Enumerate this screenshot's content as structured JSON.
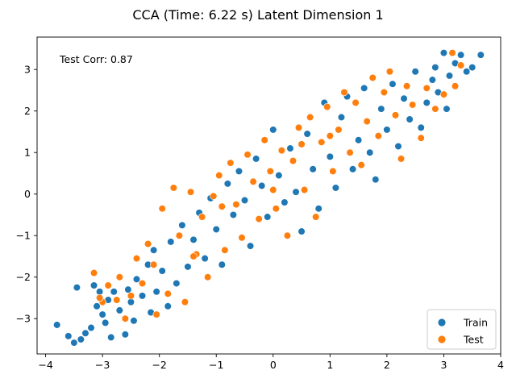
{
  "chart_data": {
    "type": "scatter",
    "title": "CCA (Time: 6.22 s) Latent Dimension 1",
    "xlabel": "",
    "ylabel": "",
    "xlim": [
      -4.15,
      4.0
    ],
    "ylim": [
      -3.85,
      3.78
    ],
    "xticks": [
      -4,
      -3,
      -2,
      -1,
      0,
      1,
      2,
      3,
      4
    ],
    "yticks": [
      -3,
      -2,
      -1,
      0,
      1,
      2,
      3
    ],
    "xtick_labels": [
      "−4",
      "−3",
      "−2",
      "−1",
      "0",
      "1",
      "2",
      "3",
      "4"
    ],
    "ytick_labels": [
      "−3",
      "−2",
      "−1",
      "0",
      "1",
      "2",
      "3"
    ],
    "grid": false,
    "legend_position": "lower-right",
    "annotation": "Test Corr: 0.87",
    "series": [
      {
        "name": "Train",
        "color": "#1f77b4",
        "points": [
          [
            -3.8,
            -3.15
          ],
          [
            -3.6,
            -3.42
          ],
          [
            -3.5,
            -3.58
          ],
          [
            -3.38,
            -3.5
          ],
          [
            -3.45,
            -2.25
          ],
          [
            -3.3,
            -3.35
          ],
          [
            -3.2,
            -3.22
          ],
          [
            -3.15,
            -2.2
          ],
          [
            -3.1,
            -2.7
          ],
          [
            -3.05,
            -2.35
          ],
          [
            -3.0,
            -2.9
          ],
          [
            -2.95,
            -3.1
          ],
          [
            -2.9,
            -2.55
          ],
          [
            -2.85,
            -3.45
          ],
          [
            -2.8,
            -2.35
          ],
          [
            -2.7,
            -2.8
          ],
          [
            -2.6,
            -3.38
          ],
          [
            -2.55,
            -2.3
          ],
          [
            -2.5,
            -2.6
          ],
          [
            -2.45,
            -3.05
          ],
          [
            -2.4,
            -2.05
          ],
          [
            -2.3,
            -2.45
          ],
          [
            -2.2,
            -1.7
          ],
          [
            -2.15,
            -2.85
          ],
          [
            -2.1,
            -1.35
          ],
          [
            -2.05,
            -2.35
          ],
          [
            -1.95,
            -1.85
          ],
          [
            -1.85,
            -2.7
          ],
          [
            -1.8,
            -1.15
          ],
          [
            -1.7,
            -2.15
          ],
          [
            -1.6,
            -0.75
          ],
          [
            -1.5,
            -1.75
          ],
          [
            -1.4,
            -1.1
          ],
          [
            -1.3,
            -0.45
          ],
          [
            -1.2,
            -1.55
          ],
          [
            -1.1,
            -0.1
          ],
          [
            -1.0,
            -0.85
          ],
          [
            -0.9,
            -1.7
          ],
          [
            -0.8,
            0.25
          ],
          [
            -0.7,
            -0.5
          ],
          [
            -0.6,
            0.55
          ],
          [
            -0.5,
            -0.15
          ],
          [
            -0.4,
            -1.25
          ],
          [
            -0.3,
            0.85
          ],
          [
            -0.2,
            0.2
          ],
          [
            -0.1,
            -0.55
          ],
          [
            0.0,
            1.55
          ],
          [
            0.1,
            0.45
          ],
          [
            0.2,
            -0.2
          ],
          [
            0.3,
            1.1
          ],
          [
            0.4,
            0.05
          ],
          [
            0.5,
            -0.9
          ],
          [
            0.6,
            1.45
          ],
          [
            0.7,
            0.6
          ],
          [
            0.8,
            -0.35
          ],
          [
            0.9,
            2.2
          ],
          [
            1.0,
            0.9
          ],
          [
            1.1,
            0.15
          ],
          [
            1.2,
            1.85
          ],
          [
            1.3,
            2.35
          ],
          [
            1.4,
            0.6
          ],
          [
            1.5,
            1.3
          ],
          [
            1.6,
            2.55
          ],
          [
            1.7,
            1.0
          ],
          [
            1.8,
            0.35
          ],
          [
            1.9,
            2.05
          ],
          [
            2.0,
            1.55
          ],
          [
            2.1,
            2.65
          ],
          [
            2.2,
            1.15
          ],
          [
            2.3,
            2.3
          ],
          [
            2.4,
            1.8
          ],
          [
            2.5,
            2.95
          ],
          [
            2.6,
            1.6
          ],
          [
            2.7,
            2.2
          ],
          [
            2.8,
            2.75
          ],
          [
            2.85,
            3.05
          ],
          [
            2.9,
            2.45
          ],
          [
            3.0,
            3.4
          ],
          [
            3.05,
            2.05
          ],
          [
            3.1,
            2.85
          ],
          [
            3.2,
            3.15
          ],
          [
            3.3,
            3.35
          ],
          [
            3.4,
            2.95
          ],
          [
            3.5,
            3.05
          ],
          [
            3.65,
            3.35
          ]
        ]
      },
      {
        "name": "Test",
        "color": "#ff7f0e",
        "points": [
          [
            -3.15,
            -1.9
          ],
          [
            -3.0,
            -2.6
          ],
          [
            -2.9,
            -2.2
          ],
          [
            -2.7,
            -2.0
          ],
          [
            -2.6,
            -3.0
          ],
          [
            -2.5,
            -2.45
          ],
          [
            -2.4,
            -1.55
          ],
          [
            -2.3,
            -2.15
          ],
          [
            -2.2,
            -1.2
          ],
          [
            -2.1,
            -1.7
          ],
          [
            -2.05,
            -2.9
          ],
          [
            -1.95,
            -0.35
          ],
          [
            -1.85,
            -2.4
          ],
          [
            -1.75,
            0.15
          ],
          [
            -1.65,
            -1.0
          ],
          [
            -1.55,
            -2.6
          ],
          [
            -1.45,
            0.05
          ],
          [
            -1.35,
            -1.45
          ],
          [
            -1.25,
            -0.55
          ],
          [
            -1.15,
            -2.0
          ],
          [
            -1.05,
            -0.05
          ],
          [
            -0.95,
            0.45
          ],
          [
            -0.85,
            -1.35
          ],
          [
            -0.75,
            0.75
          ],
          [
            -0.65,
            -0.25
          ],
          [
            -0.55,
            -1.05
          ],
          [
            -0.45,
            0.95
          ],
          [
            -0.35,
            0.3
          ],
          [
            -0.25,
            -0.6
          ],
          [
            -0.15,
            1.3
          ],
          [
            -0.05,
            0.55
          ],
          [
            0.05,
            -0.35
          ],
          [
            0.15,
            1.05
          ],
          [
            0.25,
            -1.0
          ],
          [
            0.35,
            0.8
          ],
          [
            0.45,
            1.6
          ],
          [
            0.55,
            0.1
          ],
          [
            0.65,
            1.85
          ],
          [
            0.75,
            -0.55
          ],
          [
            0.85,
            1.25
          ],
          [
            0.95,
            2.1
          ],
          [
            1.05,
            0.55
          ],
          [
            1.15,
            1.55
          ],
          [
            1.25,
            2.45
          ],
          [
            1.35,
            1.0
          ],
          [
            1.45,
            2.2
          ],
          [
            1.55,
            0.7
          ],
          [
            1.65,
            1.75
          ],
          [
            1.75,
            2.8
          ],
          [
            1.85,
            1.4
          ],
          [
            1.95,
            2.45
          ],
          [
            2.05,
            2.95
          ],
          [
            2.15,
            1.9
          ],
          [
            2.25,
            0.85
          ],
          [
            2.35,
            2.6
          ],
          [
            2.45,
            2.15
          ],
          [
            2.6,
            1.35
          ],
          [
            2.7,
            2.55
          ],
          [
            2.85,
            2.05
          ],
          [
            3.0,
            2.4
          ],
          [
            3.15,
            3.4
          ],
          [
            3.2,
            2.6
          ],
          [
            3.3,
            3.1
          ],
          [
            -3.05,
            -2.5
          ],
          [
            -2.75,
            -2.55
          ],
          [
            0.5,
            1.2
          ],
          [
            -0.9,
            -0.3
          ],
          [
            1.0,
            1.4
          ],
          [
            -1.4,
            -1.5
          ],
          [
            0.0,
            0.1
          ]
        ]
      }
    ]
  }
}
